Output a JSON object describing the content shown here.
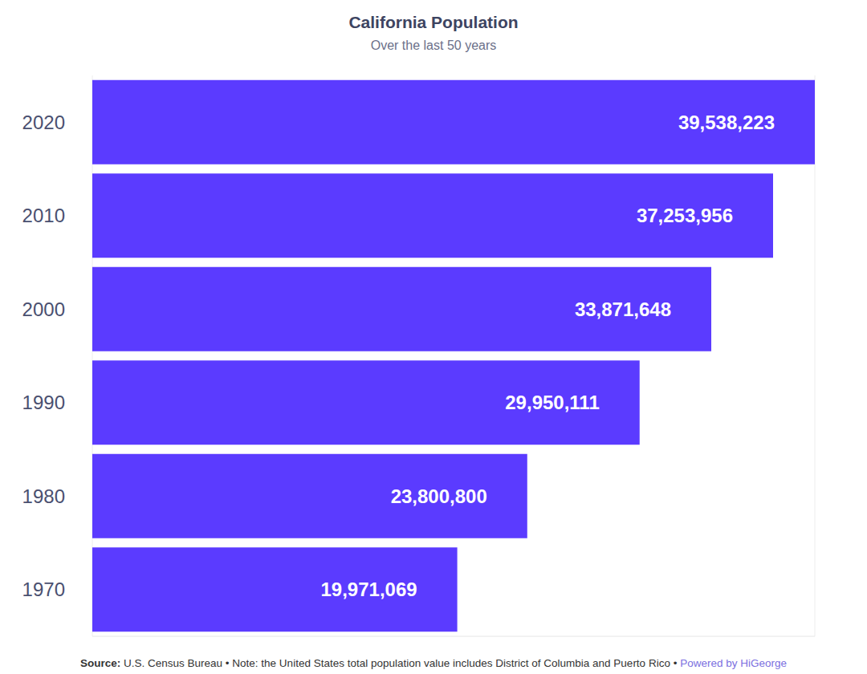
{
  "chart_data": {
    "type": "bar",
    "title": "California Population",
    "subtitle": "Over the last 50 years",
    "orientation": "horizontal",
    "categories": [
      "2020",
      "2010",
      "2000",
      "1990",
      "1980",
      "1970"
    ],
    "values": [
      39538223,
      37253956,
      33871648,
      29950111,
      23800800,
      19971069
    ],
    "value_labels": [
      "39,538,223",
      "37,253,956",
      "33,871,648",
      "29,950,111",
      "23,800,800",
      "19,971,069"
    ],
    "data_labels": true,
    "color": "#5b3bff",
    "xlim": [
      0,
      39538223
    ],
    "xticks": [
      0,
      5000000,
      10000000,
      15000000,
      20000000,
      25000000,
      30000000,
      35000000
    ],
    "tick_labels": "y",
    "grid": true,
    "annotations": [
      "Source:",
      "U.S. Census Bureau • Note: the United States total population value includes District of Columbia and Puerto Rico •",
      "Powered by HiGeorge"
    ]
  }
}
